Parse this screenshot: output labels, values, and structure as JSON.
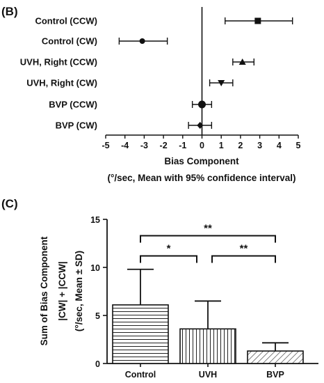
{
  "chart_data": [
    {
      "panel": "(B)",
      "type": "scatter",
      "subtype": "forest-plot",
      "orientation": "horizontal",
      "categories": [
        "Control (CCW)",
        "Control (CW)",
        "UVH, Right (CCW)",
        "UVH, Right (CW)",
        "BVP (CCW)",
        "BVP (CW)"
      ],
      "points": [
        {
          "label": "Control (CCW)",
          "mean": 2.9,
          "ci": [
            1.2,
            4.7
          ],
          "marker": "square"
        },
        {
          "label": "Control (CW)",
          "mean": -3.1,
          "ci": [
            -4.3,
            -1.8
          ],
          "marker": "circle"
        },
        {
          "label": "UVH, Right (CCW)",
          "mean": 2.1,
          "ci": [
            1.6,
            2.7
          ],
          "marker": "triangle-up"
        },
        {
          "label": "UVH, Right (CW)",
          "mean": 1.0,
          "ci": [
            0.4,
            1.6
          ],
          "marker": "triangle-down"
        },
        {
          "label": "BVP (CCW)",
          "mean": 0.0,
          "ci": [
            -0.5,
            0.5
          ],
          "marker": "circle-large"
        },
        {
          "label": "BVP (CW)",
          "mean": -0.1,
          "ci": [
            -0.7,
            0.5
          ],
          "marker": "diamond"
        }
      ],
      "xlim": [
        -5,
        5
      ],
      "xticks": [
        "-5",
        "-4",
        "-3",
        "-2",
        "-1",
        "0",
        "1",
        "2",
        "3",
        "4",
        "5"
      ],
      "xlabel": "Bias Component",
      "xlabel_sub": "(°/sec, Mean with 95% confidence interval)",
      "reference_line": 0
    },
    {
      "panel": "(C)",
      "type": "bar",
      "categories": [
        "Control",
        "UVH",
        "BVP"
      ],
      "values": [
        6.1,
        3.6,
        1.3
      ],
      "errors_sd": [
        3.7,
        2.9,
        0.85
      ],
      "fill_patterns": [
        "horizontal-lines",
        "vertical-lines",
        "diagonal-lines"
      ],
      "ylim": [
        0,
        15
      ],
      "yticks": [
        "0",
        "5",
        "10",
        "15"
      ],
      "ylabel_lines": [
        "Sum of Bias Component",
        "|CW| + |CCW|",
        "(°/sec, Mean ± SD)"
      ],
      "significance": [
        {
          "from": "Control",
          "to": "UVH",
          "label": "*",
          "level": 11.2
        },
        {
          "from": "UVH",
          "to": "BVP",
          "label": "**",
          "level": 11.2
        },
        {
          "from": "Control",
          "to": "BVP",
          "label": "**",
          "level": 13.3
        }
      ]
    }
  ]
}
